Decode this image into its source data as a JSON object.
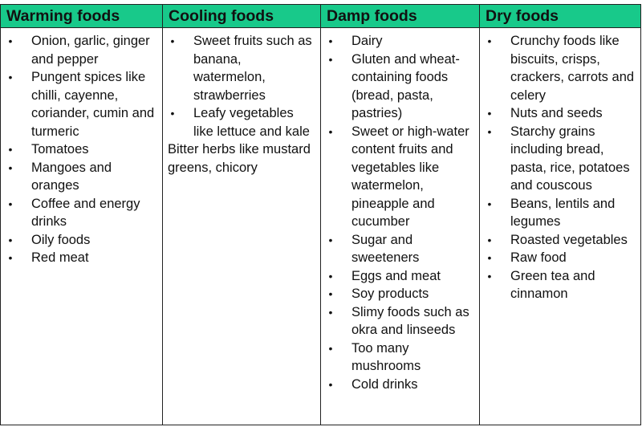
{
  "columns": [
    {
      "header": "Warming foods",
      "items": [
        "Onion, garlic, ginger and pepper",
        "Pungent spices like chilli, cayenne, coriander, cumin and turmeric",
        "Tomatoes",
        "Mangoes and oranges",
        "Coffee and energy drinks",
        "Oily foods",
        "Red meat"
      ]
    },
    {
      "header": "Cooling foods",
      "items": [
        "Sweet fruits such as banana, watermelon, strawberries",
        "Leafy vegetables like lettuce and kale"
      ],
      "note": "Bitter herbs like mustard greens, chicory"
    },
    {
      "header": "Damp foods",
      "items": [
        "Dairy",
        "Gluten and wheat-containing foods (bread, pasta, pastries)",
        "Sweet or high-water content fruits and vegetables like watermelon, pineapple and cucumber",
        "Sugar and sweeteners",
        "Eggs and meat",
        "Soy products",
        "Slimy foods such as okra and linseeds",
        "Too many mushrooms",
        "Cold drinks"
      ]
    },
    {
      "header": "Dry foods",
      "items": [
        "Crunchy foods like biscuits, crisps, crackers, carrots and celery",
        "Nuts and seeds",
        "Starchy grains including bread, pasta, rice, potatoes and couscous",
        "Beans, lentils and legumes",
        "Roasted vegetables",
        "Raw food",
        "Green tea and cinnamon"
      ]
    }
  ],
  "bullet_symbol": "•",
  "colors": {
    "header_background": "#18c98a",
    "border": "#222222",
    "text": "#111111"
  }
}
